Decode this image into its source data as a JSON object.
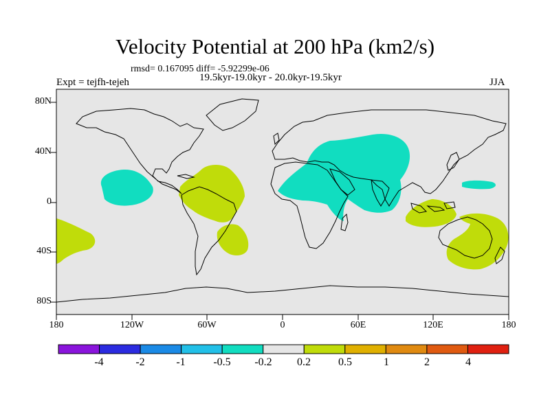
{
  "title": "Velocity Potential at 200 hPa (km2/s)",
  "stats": "rmsd= 0.167095 diff= -5.92299e-06",
  "experiment": "Expt = tejfh-tejeh",
  "period": "19.5kyr-19.0kyr - 20.0kyr-19.5kyr",
  "season": "JJA",
  "lat_labels": [
    "80N",
    "40N",
    "0",
    "40S",
    "80S"
  ],
  "lon_labels": [
    "180",
    "120W",
    "60W",
    "0",
    "60E",
    "120E",
    "180"
  ],
  "colorbar": {
    "colors": [
      "#8a14dc",
      "#2b2be0",
      "#1a8ae6",
      "#22c0e8",
      "#11ddc0",
      "#e6e6e6",
      "#c0dc0a",
      "#e0b000",
      "#e08a10",
      "#e05a10",
      "#e02010"
    ],
    "labels": [
      "-4",
      "-2",
      "-1",
      "-0.5",
      "-0.2",
      "0.2",
      "0.5",
      "1",
      "2",
      "4"
    ]
  },
  "colors": {
    "ocean": "#e6e6e6",
    "negative": "#11ddc0",
    "positive": "#c0dc0a",
    "coast": "#000000"
  }
}
